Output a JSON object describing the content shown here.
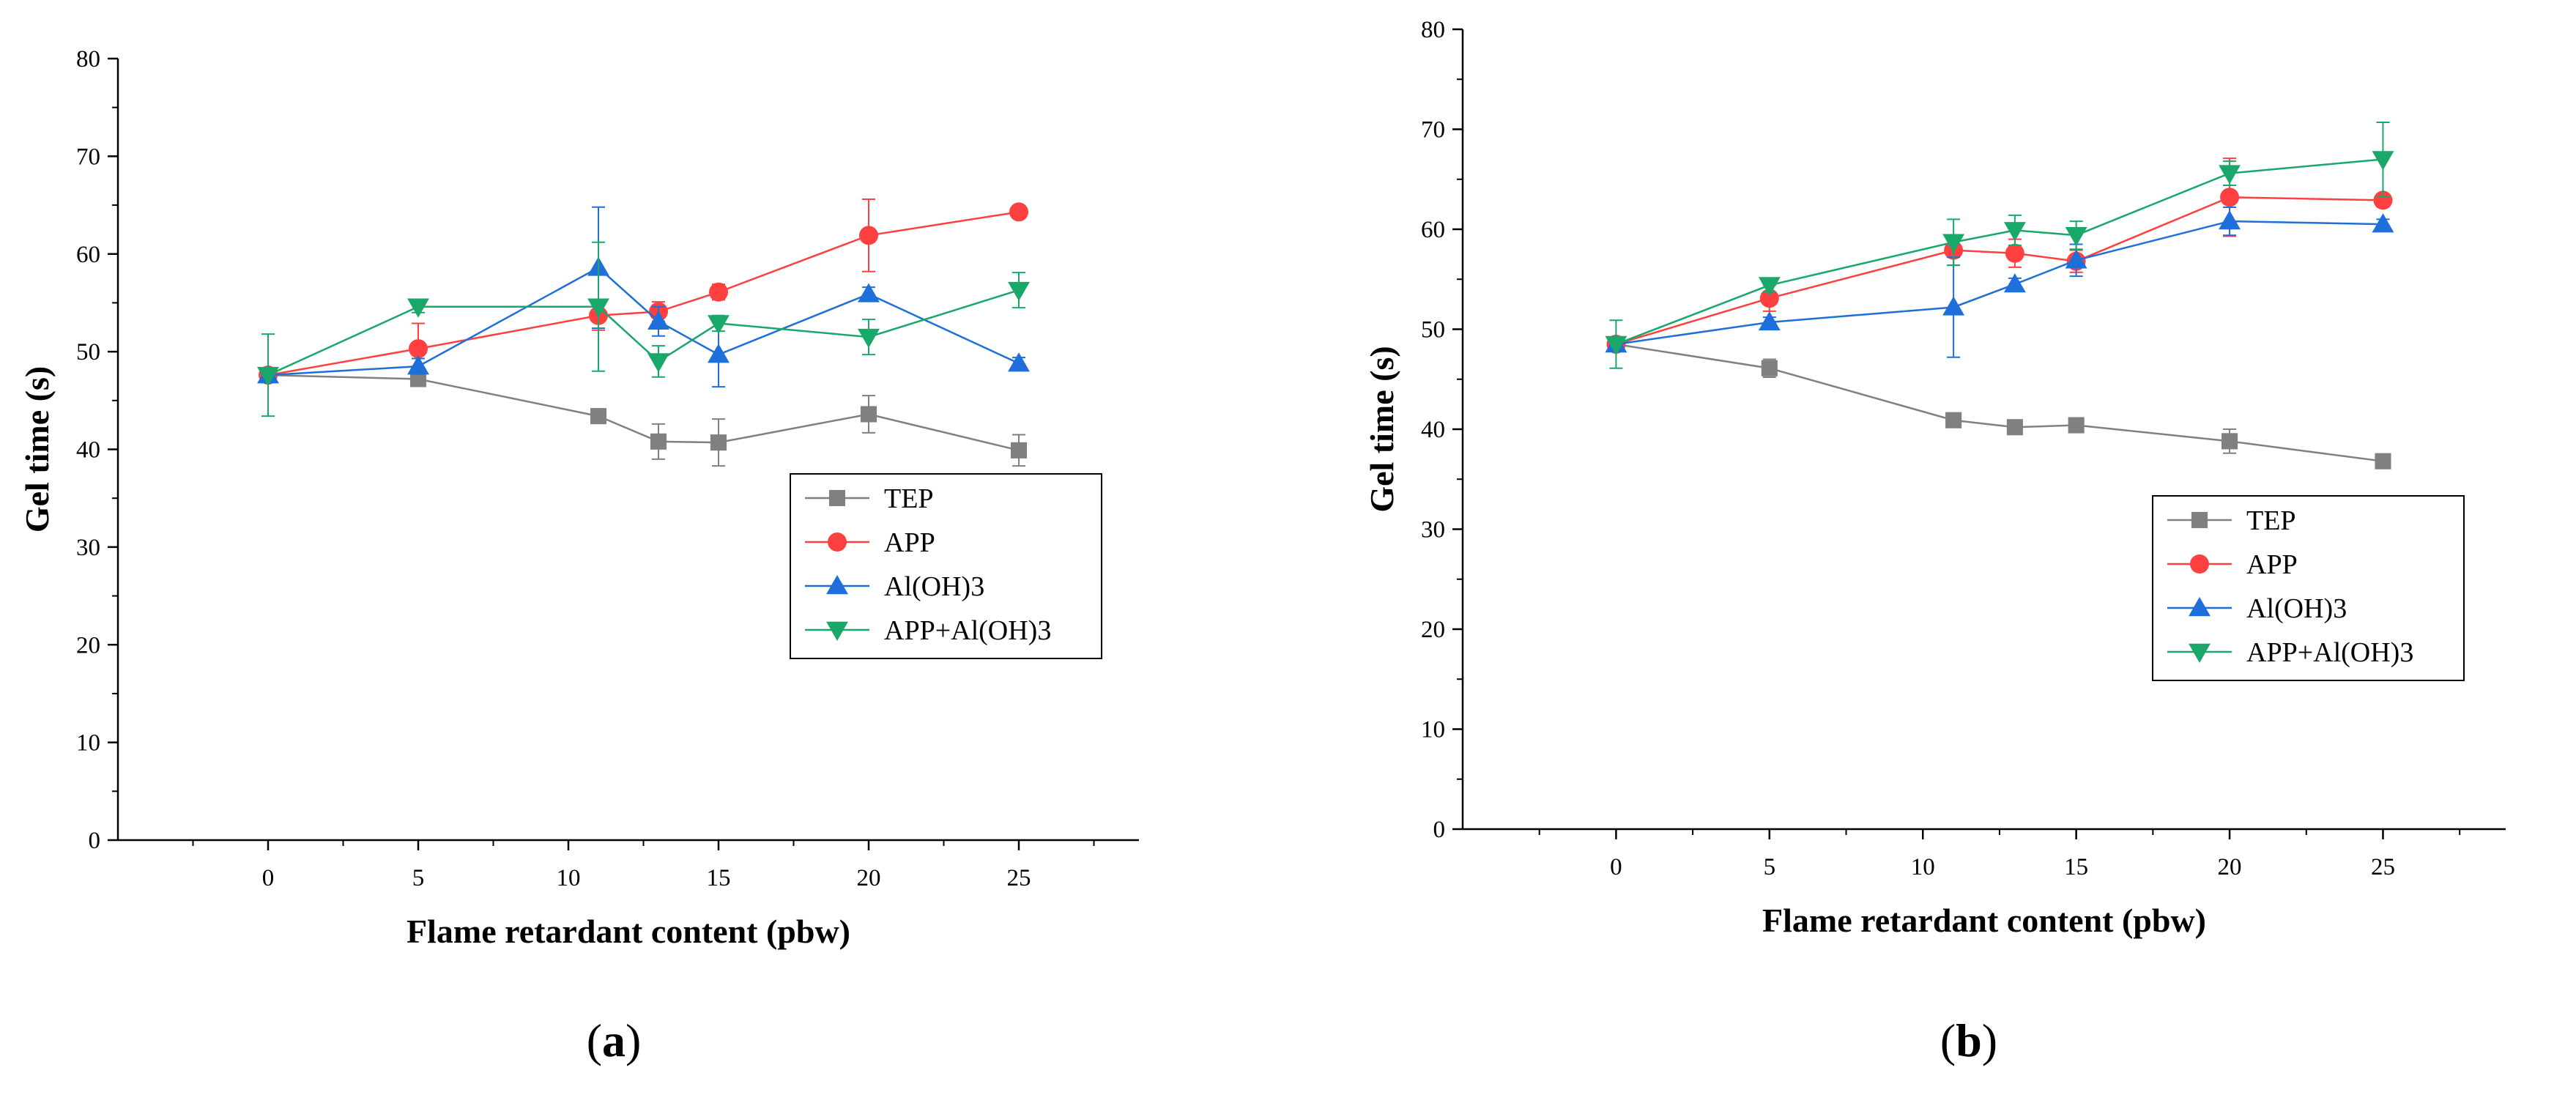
{
  "chart_data": [
    {
      "type": "line",
      "panel_label": "a",
      "caption_open": "(",
      "caption_close": ")",
      "title": "",
      "xlabel": "Flame retardant content (pbw)",
      "ylabel": "Gel time (s)",
      "xlim": [
        -5,
        29
      ],
      "ylim": [
        0,
        80
      ],
      "x_ticks": [
        0,
        5,
        10,
        15,
        20,
        25
      ],
      "y_ticks": [
        0,
        10,
        20,
        30,
        40,
        50,
        60,
        70,
        80
      ],
      "grid": false,
      "legend_position": "bottom-right",
      "x": [
        0,
        5,
        11,
        13,
        15,
        20,
        25
      ],
      "series": [
        {
          "name": "TEP",
          "color": "#808080",
          "marker": "square",
          "values": [
            47.6,
            47.2,
            43.4,
            40.8,
            40.7,
            43.6,
            39.9
          ],
          "errors": [
            0.5,
            0.6,
            0.5,
            1.8,
            2.4,
            1.9,
            1.6
          ]
        },
        {
          "name": "APP",
          "color": "#ff4040",
          "marker": "circle",
          "values": [
            47.6,
            50.3,
            53.7,
            54.1,
            56.1,
            61.9,
            64.3
          ],
          "errors": [
            0.5,
            2.6,
            1.5,
            1.0,
            0.8,
            3.7,
            0.6
          ]
        },
        {
          "name": "Al(OH)3",
          "color": "#1e6fd9",
          "marker": "triangle-up",
          "values": [
            47.6,
            48.5,
            58.6,
            53.1,
            49.7,
            55.9,
            48.8
          ],
          "errors": [
            0.5,
            0.8,
            6.2,
            1.5,
            3.3,
            0.7,
            0.6
          ]
        },
        {
          "name": "APP+Al(OH)3",
          "color": "#1aa86a",
          "marker": "triangle-down",
          "values": [
            47.6,
            54.6,
            54.6,
            49.0,
            52.9,
            51.5,
            56.3
          ],
          "errors": [
            4.2,
            0.6,
            6.6,
            1.6,
            0.8,
            1.8,
            1.8
          ]
        }
      ]
    },
    {
      "type": "line",
      "panel_label": "b",
      "caption_open": "(",
      "caption_close": ")",
      "title": "",
      "xlabel": "Flame retardant content (pbw)",
      "ylabel": "Gel time (s)",
      "xlim": [
        -5,
        29
      ],
      "ylim": [
        0,
        80
      ],
      "x_ticks": [
        0,
        5,
        10,
        15,
        20,
        25
      ],
      "y_ticks": [
        0,
        10,
        20,
        30,
        40,
        50,
        60,
        70,
        80
      ],
      "grid": false,
      "legend_position": "bottom-right",
      "x": [
        0,
        5,
        11,
        13,
        15,
        20,
        25
      ],
      "series": [
        {
          "name": "TEP",
          "color": "#808080",
          "marker": "square",
          "values": [
            48.5,
            46.1,
            40.9,
            40.2,
            40.4,
            38.8,
            36.8
          ],
          "errors": [
            0.6,
            0.9,
            0.5,
            0.4,
            0.4,
            1.2,
            0.4
          ]
        },
        {
          "name": "APP",
          "color": "#ff4040",
          "marker": "circle",
          "values": [
            48.5,
            53.1,
            57.9,
            57.6,
            56.8,
            63.2,
            62.9
          ],
          "errors": [
            0.6,
            1.3,
            1.5,
            1.4,
            1.1,
            3.9,
            0.4
          ]
        },
        {
          "name": "Al(OH)3",
          "color": "#1e6fd9",
          "marker": "triangle-up",
          "values": [
            48.5,
            50.7,
            52.2,
            54.5,
            56.9,
            60.8,
            60.5
          ],
          "errors": [
            0.6,
            0.5,
            5.0,
            0.6,
            1.6,
            1.4,
            0.5
          ]
        },
        {
          "name": "APP+Al(OH)3",
          "color": "#1aa86a",
          "marker": "triangle-down",
          "values": [
            48.5,
            54.4,
            58.7,
            59.9,
            59.4,
            65.6,
            67.0
          ],
          "errors": [
            2.4,
            0.7,
            2.3,
            1.5,
            1.4,
            1.2,
            3.7
          ]
        }
      ]
    }
  ]
}
